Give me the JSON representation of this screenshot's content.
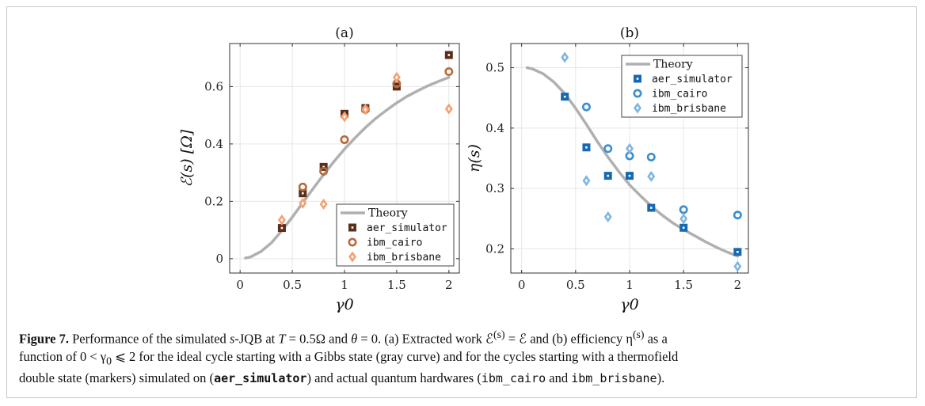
{
  "chart_data": [
    {
      "type": "scatter",
      "title": "(a)",
      "xlabel": "γ0",
      "ylabel": "ℰ(s) [Ω]",
      "xlim": [
        -0.1,
        2.1
      ],
      "ylim": [
        -0.05,
        0.75
      ],
      "xticks": [
        "0",
        "0.5",
        "1",
        "1.5",
        "2"
      ],
      "yticks": [
        "0",
        "0.2",
        "0.4",
        "0.6"
      ],
      "grid": true,
      "legend": "bottom-right",
      "series": [
        {
          "name": "Theory",
          "kind": "line",
          "color": "#b0b0b0",
          "x": [
            0.05,
            0.1,
            0.2,
            0.3,
            0.4,
            0.5,
            0.6,
            0.7,
            0.8,
            0.9,
            1.0,
            1.1,
            1.2,
            1.3,
            1.4,
            1.5,
            1.6,
            1.7,
            1.8,
            1.9,
            2.0
          ],
          "y": [
            0.002,
            0.006,
            0.025,
            0.055,
            0.098,
            0.145,
            0.195,
            0.245,
            0.293,
            0.339,
            0.382,
            0.421,
            0.457,
            0.489,
            0.517,
            0.543,
            0.566,
            0.585,
            0.603,
            0.618,
            0.632
          ]
        },
        {
          "name": "aer_simulator",
          "kind": "square",
          "color": "#5a2e1b",
          "x": [
            0.4,
            0.6,
            0.8,
            1.0,
            1.2,
            1.5,
            2.0
          ],
          "y": [
            0.107,
            0.228,
            0.32,
            0.505,
            0.525,
            0.6,
            0.71
          ]
        },
        {
          "name": "ibm_cairo",
          "kind": "circle",
          "color": "#b86a3c",
          "x": [
            0.6,
            0.8,
            1.0,
            1.2,
            1.5,
            2.0
          ],
          "y": [
            0.25,
            0.305,
            0.415,
            0.52,
            0.61,
            0.652
          ]
        },
        {
          "name": "ibm_brisbane",
          "kind": "diamond",
          "color": "#f4a072",
          "x": [
            0.4,
            0.6,
            0.8,
            1.0,
            1.2,
            1.5,
            2.0
          ],
          "y": [
            0.135,
            0.193,
            0.19,
            0.495,
            0.52,
            0.632,
            0.522
          ]
        }
      ]
    },
    {
      "type": "scatter",
      "title": "(b)",
      "xlabel": "γ0",
      "ylabel": "η(s)",
      "xlim": [
        -0.1,
        2.1
      ],
      "ylim": [
        0.16,
        0.54
      ],
      "xticks": [
        "0",
        "0.5",
        "1",
        "1.5",
        "2"
      ],
      "yticks": [
        "0.2",
        "0.3",
        "0.4",
        "0.5"
      ],
      "grid": true,
      "legend": "top-right",
      "series": [
        {
          "name": "Theory",
          "kind": "line",
          "color": "#b0b0b0",
          "x": [
            0.05,
            0.1,
            0.2,
            0.3,
            0.4,
            0.5,
            0.6,
            0.7,
            0.8,
            0.9,
            1.0,
            1.1,
            1.2,
            1.3,
            1.4,
            1.5,
            1.6,
            1.7,
            1.8,
            1.9,
            2.0
          ],
          "y": [
            0.5,
            0.498,
            0.49,
            0.476,
            0.457,
            0.433,
            0.406,
            0.378,
            0.352,
            0.328,
            0.306,
            0.288,
            0.271,
            0.256,
            0.243,
            0.232,
            0.222,
            0.212,
            0.203,
            0.195,
            0.188
          ]
        },
        {
          "name": "aer_simulator",
          "kind": "square",
          "color": "#1669b0",
          "x": [
            0.4,
            0.6,
            0.8,
            1.0,
            1.2,
            1.5,
            2.0
          ],
          "y": [
            0.452,
            0.368,
            0.321,
            0.321,
            0.268,
            0.235,
            0.195
          ]
        },
        {
          "name": "ibm_cairo",
          "kind": "circle",
          "color": "#3a8fd0",
          "x": [
            0.6,
            0.8,
            1.0,
            1.2,
            1.5,
            2.0
          ],
          "y": [
            0.435,
            0.366,
            0.354,
            0.352,
            0.265,
            0.256
          ]
        },
        {
          "name": "ibm_brisbane",
          "kind": "diamond",
          "color": "#7fb6e0",
          "x": [
            0.4,
            0.6,
            0.8,
            1.0,
            1.2,
            1.5,
            2.0
          ],
          "y": [
            0.517,
            0.313,
            0.253,
            0.366,
            0.32,
            0.25,
            0.171
          ]
        }
      ]
    }
  ],
  "caption": {
    "label": "Figure 7.",
    "l1_a": " Performance of the simulated ",
    "l1_s": "s",
    "l1_b": "-JQB at ",
    "l1_T": "T",
    "l1_c": " = 0.5Ω and ",
    "l1_theta": "θ",
    "l1_d": " = 0. (a) Extracted work ℰ",
    "l1_sup1": "(s)",
    "l1_e": " = ℰ and (b) efficiency η",
    "l1_sup2": "(s)",
    "l1_f": " as a",
    "l2_a": "function of 0 < γ",
    "l2_sub": "0",
    "l2_b": " ⩽ 2 for the ideal cycle starting with a Gibbs state (gray curve) and for the cycles starting with a thermofield",
    "l3_a": "double state (markers) simulated on (",
    "l3_m1": "aer_simulator",
    "l3_b": ") and actual quantum hardwares (",
    "l3_m2": "ibm_cairo",
    "l3_c": " and ",
    "l3_m3": "ibm_brisbane",
    "l3_d": ")."
  }
}
